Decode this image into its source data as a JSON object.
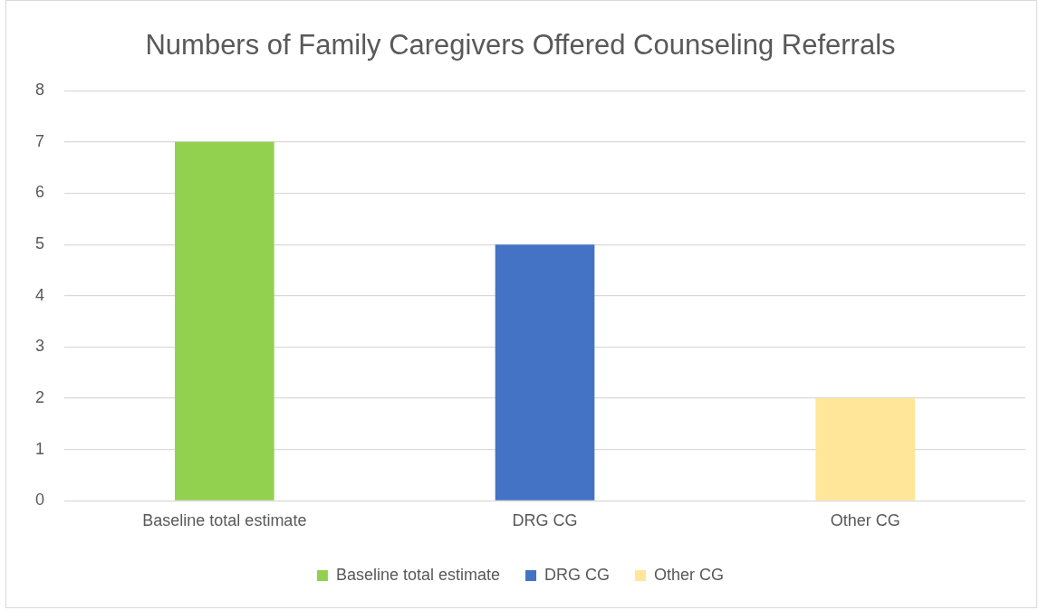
{
  "chart_data": {
    "type": "bar",
    "title": "Numbers of Family Caregivers Offered Counseling Referrals",
    "categories": [
      "Baseline total estimate",
      "DRG CG",
      "Other CG"
    ],
    "series": [
      {
        "name": "Baseline total estimate",
        "color": "#92d050",
        "values": [
          7,
          null,
          null
        ]
      },
      {
        "name": "DRG CG",
        "color": "#4472c4",
        "values": [
          null,
          5,
          null
        ]
      },
      {
        "name": "Other CG",
        "color": "#ffe699",
        "values": [
          null,
          null,
          2
        ]
      }
    ],
    "ylim": [
      0,
      8
    ],
    "yticks": [
      0,
      1,
      2,
      3,
      4,
      5,
      6,
      7,
      8
    ],
    "grid": "y",
    "legend": "bottom"
  }
}
